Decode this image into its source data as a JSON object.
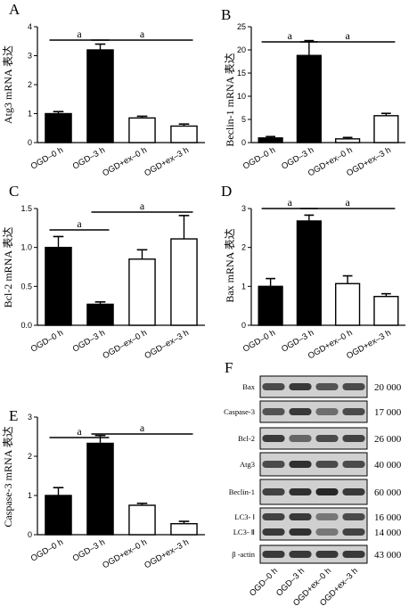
{
  "colors": {
    "filled": "#000000",
    "open": "#ffffff",
    "band": "#1e1e1e",
    "blot_bg": "#c9c9c9"
  },
  "chart_data": [
    {
      "id": "A",
      "type": "bar",
      "letter": "A",
      "ylabel": "Atg3 mRNA 表达",
      "categories": [
        "OGD–0 h",
        "OGD–3 h",
        "OGD+ex–0 h",
        "OGD+ex–3 h"
      ],
      "values": [
        1.0,
        3.2,
        0.85,
        0.57
      ],
      "errors": [
        0.07,
        0.2,
        0.06,
        0.07
      ],
      "fills": [
        "#000000",
        "#000000",
        "#ffffff",
        "#ffffff"
      ],
      "ylim": [
        0,
        4
      ],
      "yticks": [
        "0",
        "1",
        "2",
        "3",
        "4"
      ],
      "significance": [
        {
          "label": "a",
          "from": 0,
          "to": 1
        },
        {
          "label": "a",
          "from": 1,
          "to": 3
        }
      ]
    },
    {
      "id": "B",
      "type": "bar",
      "letter": "B",
      "ylabel": "Beclin-1 mRNA 表达",
      "categories": [
        "OGD–0 h",
        "OGD–3 h",
        "OGD+ex–0 h",
        "OGD+ex–3 h"
      ],
      "values": [
        1.0,
        18.8,
        0.8,
        5.8
      ],
      "errors": [
        0.3,
        3.2,
        0.3,
        0.5
      ],
      "fills": [
        "#000000",
        "#000000",
        "#ffffff",
        "#ffffff"
      ],
      "ylim": [
        0,
        25
      ],
      "yticks": [
        "0",
        "5",
        "10",
        "15",
        "20",
        "25"
      ],
      "significance": [
        {
          "label": "a",
          "from": 0,
          "to": 1
        },
        {
          "label": "a",
          "from": 1,
          "to": 3
        }
      ]
    },
    {
      "id": "C",
      "type": "bar",
      "letter": "C",
      "ylabel": "Bcl-2 mRNA 表达",
      "categories": [
        "OGD–0 h",
        "OGD–3 h",
        "OGD–ex–0 h",
        "OGD–ex–3 h"
      ],
      "values": [
        1.0,
        0.27,
        0.85,
        1.11
      ],
      "errors": [
        0.14,
        0.03,
        0.12,
        0.3
      ],
      "fills": [
        "#000000",
        "#000000",
        "#ffffff",
        "#ffffff"
      ],
      "ylim": [
        0,
        1.5
      ],
      "yticks": [
        "0.0",
        "0.5",
        "1.0",
        "1.5"
      ],
      "significance": [
        {
          "label": "a",
          "from": 0,
          "to": 1
        },
        {
          "label": "a",
          "from": 1,
          "to": 3
        }
      ]
    },
    {
      "id": "D",
      "type": "bar",
      "letter": "D",
      "ylabel": "Bax mRNA 表达",
      "categories": [
        "OGD–0 h",
        "OGD–3 h",
        "OGD+ex–0 h",
        "OGD+ex–3 h"
      ],
      "values": [
        1.0,
        2.68,
        1.07,
        0.74
      ],
      "errors": [
        0.2,
        0.15,
        0.2,
        0.07
      ],
      "fills": [
        "#000000",
        "#000000",
        "#ffffff",
        "#ffffff"
      ],
      "ylim": [
        0,
        3
      ],
      "yticks": [
        "0",
        "1",
        "2",
        "3"
      ],
      "significance": [
        {
          "label": "a",
          "from": 0,
          "to": 1
        },
        {
          "label": "a",
          "from": 1,
          "to": 3
        }
      ]
    },
    {
      "id": "E",
      "type": "bar",
      "letter": "E",
      "ylabel": "Caspase-3 mRNA 表达",
      "categories": [
        "OGD–0 h",
        "OGD–3 h",
        "OGD+ex–0 h",
        "OGD+ex–3 h"
      ],
      "values": [
        1.0,
        2.33,
        0.75,
        0.28
      ],
      "errors": [
        0.2,
        0.2,
        0.05,
        0.06
      ],
      "fills": [
        "#000000",
        "#000000",
        "#ffffff",
        "#ffffff"
      ],
      "ylim": [
        0,
        3
      ],
      "yticks": [
        "0",
        "1",
        "2",
        "3"
      ],
      "significance": [
        {
          "label": "a",
          "from": 0,
          "to": 1
        },
        {
          "label": "a",
          "from": 1,
          "to": 3
        }
      ]
    }
  ],
  "blot": {
    "letter": "F",
    "rows": [
      {
        "label": "Bax",
        "mw": "20 000",
        "intensity": [
          0.75,
          0.85,
          0.7,
          0.75
        ]
      },
      {
        "label": "Caspase-3",
        "mw": "17 000",
        "intensity": [
          0.7,
          0.85,
          0.55,
          0.75
        ]
      },
      {
        "label": "Bcl-2",
        "mw": "26 000",
        "intensity": [
          0.85,
          0.6,
          0.75,
          0.8
        ]
      },
      {
        "label": "Atg3",
        "mw": "40 000",
        "intensity": [
          0.75,
          0.9,
          0.75,
          0.75
        ]
      },
      {
        "label": "Beclin-1",
        "mw": "60 000",
        "intensity": [
          0.8,
          0.9,
          0.95,
          0.85
        ]
      },
      {
        "label": "LC3- Ⅰ",
        "mw": "16 000",
        "intensity": [
          0.8,
          0.85,
          0.5,
          0.75
        ]
      },
      {
        "label": "LC3- Ⅱ",
        "mw": "14 000",
        "intensity": [
          0.85,
          0.9,
          0.5,
          0.8
        ]
      },
      {
        "label": "β -actin",
        "mw": "43 000",
        "intensity": [
          0.85,
          0.85,
          0.85,
          0.85
        ]
      }
    ],
    "lanes": [
      "OGD–0 h",
      "OGD–3 h",
      "OGD+ex–0 h",
      "OGD+ex–3 h"
    ]
  }
}
